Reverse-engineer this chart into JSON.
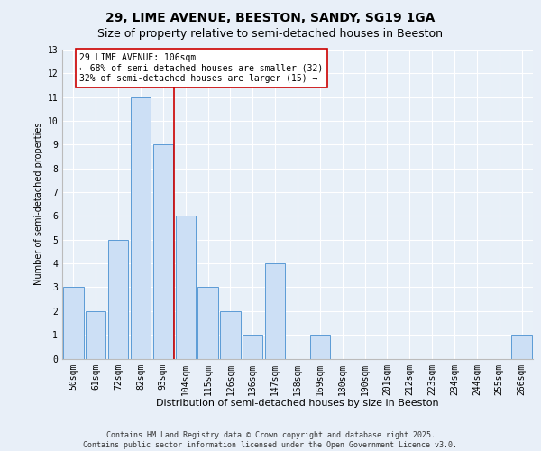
{
  "title_line1": "29, LIME AVENUE, BEESTON, SANDY, SG19 1GA",
  "title_line2": "Size of property relative to semi-detached houses in Beeston",
  "xlabel": "Distribution of semi-detached houses by size in Beeston",
  "ylabel": "Number of semi-detached properties",
  "categories": [
    "50sqm",
    "61sqm",
    "72sqm",
    "82sqm",
    "93sqm",
    "104sqm",
    "115sqm",
    "126sqm",
    "136sqm",
    "147sqm",
    "158sqm",
    "169sqm",
    "180sqm",
    "190sqm",
    "201sqm",
    "212sqm",
    "223sqm",
    "234sqm",
    "244sqm",
    "255sqm",
    "266sqm"
  ],
  "values": [
    3,
    2,
    5,
    11,
    9,
    6,
    3,
    2,
    1,
    4,
    0,
    1,
    0,
    0,
    0,
    0,
    0,
    0,
    0,
    0,
    1
  ],
  "bar_color": "#ccdff5",
  "bar_edge_color": "#5b9bd5",
  "vline_x_index": 4.5,
  "annotation_text": "29 LIME AVENUE: 106sqm\n← 68% of semi-detached houses are smaller (32)\n32% of semi-detached houses are larger (15) →",
  "annotation_box_color": "#ffffff",
  "annotation_box_edge": "#cc0000",
  "vline_color": "#cc0000",
  "ylim": [
    0,
    13
  ],
  "yticks": [
    0,
    1,
    2,
    3,
    4,
    5,
    6,
    7,
    8,
    9,
    10,
    11,
    12,
    13
  ],
  "footer_text": "Contains HM Land Registry data © Crown copyright and database right 2025.\nContains public sector information licensed under the Open Government Licence v3.0.",
  "background_color": "#e8eff8",
  "plot_background": "#e8f0f8",
  "grid_color": "#ffffff",
  "title_fontsize": 10,
  "subtitle_fontsize": 9,
  "annotation_fontsize": 7,
  "footer_fontsize": 6,
  "tick_fontsize": 7,
  "ylabel_fontsize": 7,
  "xlabel_fontsize": 8
}
